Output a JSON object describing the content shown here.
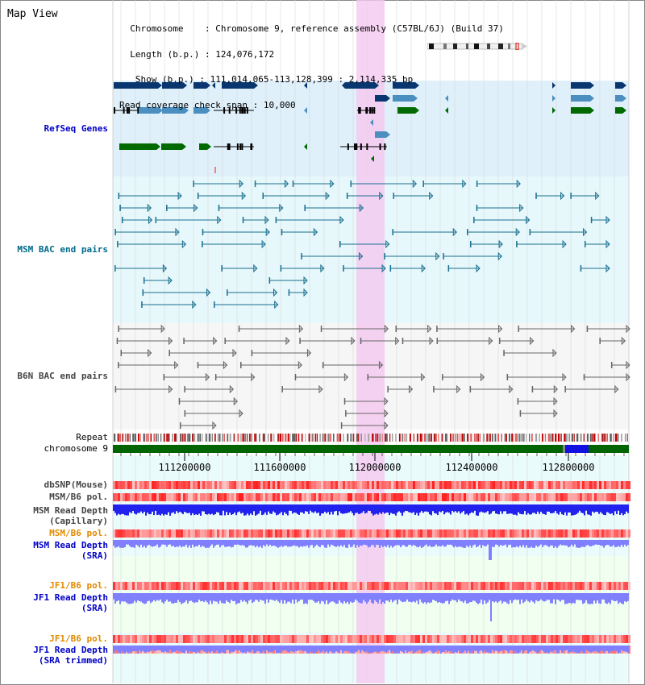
{
  "title": "Map View",
  "info": {
    "chromosome_key": "Chromosome",
    "chromosome_val": "Chromosome 9, reference assembly (C57BL/6J) (Build 37)",
    "length_key": "Length (b.p.)",
    "length_val": "124,076,172",
    "show_key": "Show (b.p.)",
    "show_val": "111,014,065-113,128,399 : 2,114,335 bp",
    "coverage_key": "Read coverage check span",
    "coverage_val": "10,000"
  },
  "tracks": {
    "refseq": "RefSeq Genes",
    "msm_bac": "MSM BAC end pairs",
    "b6n_bac": "B6N BAC end pairs",
    "repeat": "Repeat",
    "chromosome": "chromosome 9",
    "dbsnp": "dbSNP(Mouse)",
    "msm_b6_pol": "MSM/B6 pol.",
    "msm_depth_cap_1": "MSM Read Depth",
    "msm_depth_cap_2": "(Capillary)",
    "msm_b6_pol_2": "MSM/B6 pol.",
    "msm_depth_sra_1": "MSM Read Depth",
    "msm_depth_sra_2": "(SRA)",
    "jf1_b6_pol": "JF1/B6 pol.",
    "jf1_depth_sra_1": "JF1 Read Depth",
    "jf1_depth_sra_2": "(SRA)",
    "jf1_b6_pol_2": "JF1/B6 pol.",
    "jf1_depth_trim_1": "JF1 Read Depth",
    "jf1_depth_trim_2": "(SRA trimmed)"
  },
  "axis_ticks": [
    "111200000",
    "111600000",
    "112000000",
    "112400000",
    "112800000"
  ],
  "colors": {
    "refseq_dark": "#0a3670",
    "refseq_light": "#4a8fc0",
    "refseq_green": "#006a00",
    "bac_teal": "#1a6f8f",
    "bac_grey": "#666666",
    "highlight": "#f5c8f0",
    "chromosome": "#006400",
    "depth_blue": "#2222ee",
    "depth_light": "#8080ff"
  }
}
